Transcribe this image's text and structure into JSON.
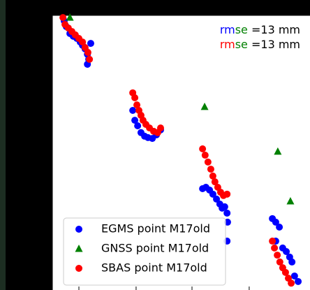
{
  "chart_data": {
    "type": "scatter",
    "xlim": [
      0,
      100
    ],
    "ylim": [
      0,
      100
    ],
    "xticks": [
      10.3,
      32.5,
      54.2,
      76.4
    ],
    "yticks": [
      19.6,
      39.4,
      59.8,
      80.2
    ],
    "legend": "lower left",
    "annotations": [
      {
        "segments": [
          {
            "text": "rm",
            "color": "#0000ff"
          },
          {
            "text": "se",
            "color": "#008000"
          },
          {
            "text": " =13 mm",
            "color": "#000000"
          }
        ]
      },
      {
        "segments": [
          {
            "text": "rm",
            "color": "#ff0000"
          },
          {
            "text": "se",
            "color": "#008000"
          },
          {
            "text": " =13 mm",
            "color": "#000000"
          }
        ]
      }
    ],
    "series": [
      {
        "name": "EGMS point M17old",
        "color": "#0000ff",
        "marker": "circle",
        "x": [
          4.6,
          5.4,
          6.8,
          8.1,
          9.5,
          10.8,
          11.7,
          12.7,
          13.6,
          14.1,
          13.6,
          14.9,
          31.2,
          32.0,
          33.1,
          34.4,
          35.8,
          37.1,
          38.8,
          40.4,
          42.0,
          58.3,
          59.6,
          61.0,
          62.3,
          63.7,
          65.0,
          65.9,
          66.9,
          67.8,
          68.0,
          67.8,
          85.4,
          86.7,
          88.1,
          86.7,
          89.4,
          90.8,
          92.1,
          93.0,
          94.0,
          95.4
        ],
        "values": [
          98.0,
          95.9,
          93.4,
          92.4,
          91.6,
          90.3,
          89.1,
          87.8,
          85.8,
          84.0,
          82.2,
          89.8,
          65.4,
          61.8,
          59.8,
          57.3,
          56.0,
          55.5,
          55.2,
          56.5,
          58.3,
          36.9,
          37.4,
          36.4,
          34.9,
          33.1,
          31.3,
          29.8,
          30.3,
          28.0,
          24.7,
          17.8,
          26.0,
          24.7,
          22.9,
          17.8,
          15.3,
          14.0,
          12.0,
          10.2,
          5.1,
          3.1
        ]
      },
      {
        "name": "GNSS point M17old",
        "color": "#008000",
        "marker": "triangle",
        "x": [
          6.8,
          59.1,
          87.5,
          92.4
        ],
        "values": [
          99.2,
          66.7,
          50.4,
          32.3
        ]
      },
      {
        "name": "SBAS point M17old",
        "color": "#ff0000",
        "marker": "circle",
        "x": [
          4.1,
          4.9,
          6.2,
          7.6,
          8.9,
          10.3,
          11.7,
          12.7,
          13.8,
          14.4,
          31.2,
          32.0,
          32.8,
          33.6,
          34.4,
          35.2,
          36.3,
          37.7,
          39.3,
          40.9,
          42.0,
          58.3,
          59.3,
          60.4,
          61.5,
          62.3,
          63.1,
          64.2,
          65.3,
          66.4,
          67.8,
          85.4,
          86.2,
          87.3,
          88.3,
          89.4,
          90.5,
          91.6,
          92.7
        ],
        "values": [
          99.2,
          96.7,
          95.4,
          94.1,
          92.9,
          91.6,
          90.3,
          88.3,
          86.5,
          84.0,
          71.8,
          70.0,
          67.4,
          65.4,
          63.6,
          61.8,
          60.3,
          59.0,
          57.8,
          57.3,
          59.0,
          51.4,
          49.1,
          46.6,
          44.0,
          41.5,
          39.4,
          37.4,
          35.6,
          34.4,
          34.9,
          17.8,
          15.3,
          12.7,
          10.2,
          8.1,
          6.4,
          4.3,
          2.5
        ]
      }
    ]
  }
}
